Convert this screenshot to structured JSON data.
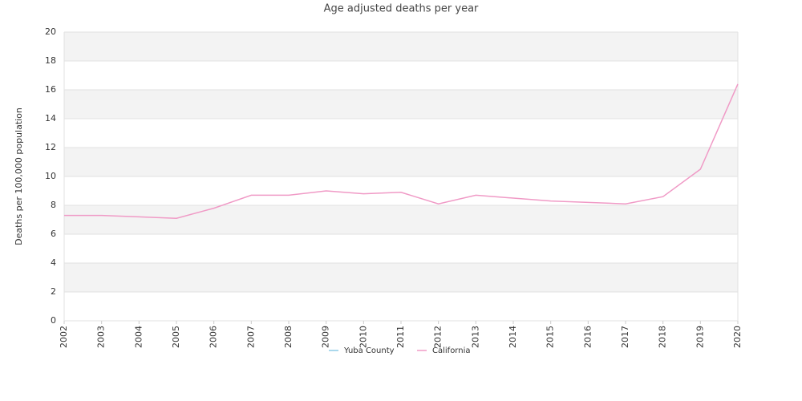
{
  "chart_data": {
    "type": "line",
    "title": "Age adjusted deaths per year",
    "y_label": "Deaths per 100,000 population",
    "x": [
      2002,
      2003,
      2004,
      2005,
      2006,
      2007,
      2008,
      2009,
      2010,
      2011,
      2012,
      2013,
      2014,
      2015,
      2016,
      2017,
      2018,
      2019,
      2020
    ],
    "xlim": [
      2002,
      2020
    ],
    "xticks": [
      2002,
      2003,
      2004,
      2005,
      2006,
      2007,
      2008,
      2009,
      2010,
      2011,
      2012,
      2013,
      2014,
      2015,
      2016,
      2017,
      2018,
      2019,
      2020
    ],
    "ylim": [
      0,
      20
    ],
    "yticks": [
      0,
      2,
      4,
      6,
      8,
      10,
      12,
      14,
      16,
      18,
      20
    ],
    "grid": true,
    "series": [
      {
        "name": "Yuba County",
        "color": "#8ecae6",
        "values": [
          null,
          null,
          null,
          null,
          null,
          null,
          null,
          null,
          null,
          null,
          null,
          null,
          null,
          null,
          null,
          null,
          null,
          null,
          null
        ]
      },
      {
        "name": "California",
        "color": "#f09ac6",
        "values": [
          7.3,
          7.3,
          7.2,
          7.1,
          7.8,
          8.7,
          8.7,
          9.0,
          8.8,
          8.9,
          8.1,
          8.7,
          8.5,
          8.3,
          8.2,
          8.1,
          8.6,
          10.5,
          16.4
        ]
      }
    ],
    "legend": "bottom"
  }
}
